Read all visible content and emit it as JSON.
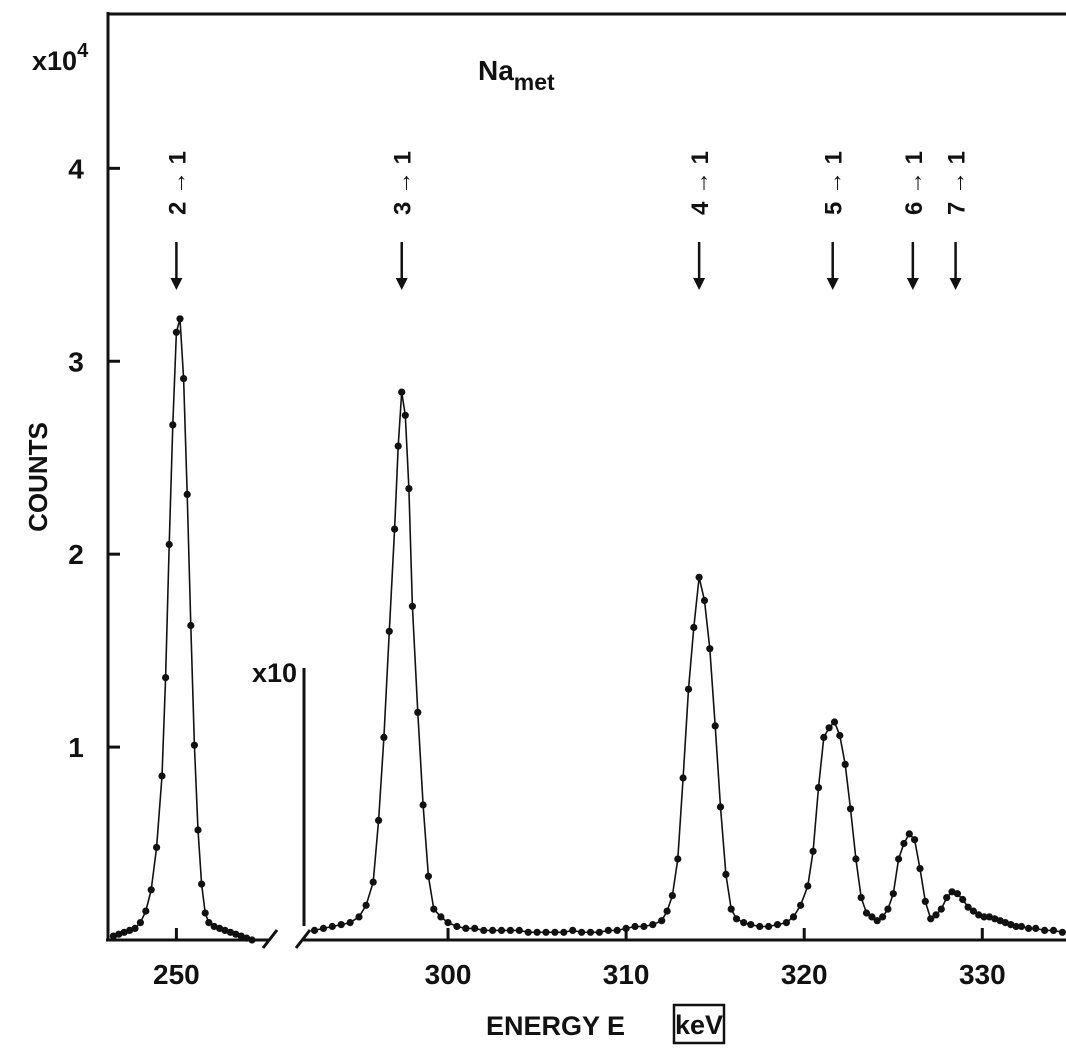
{
  "chart_data": {
    "type": "scatter",
    "title": "Na",
    "title_subscript": "met",
    "xlabel": "ENERGY  E",
    "xunit": "keV",
    "ylabel": "COUNTS",
    "y_multiplier": "x10",
    "y_multiplier_exp": "4",
    "ylim": [
      0,
      4.8
    ],
    "yticks": [
      1,
      2,
      3,
      4
    ],
    "grid": false,
    "legend": "none",
    "break_annotation": "x10",
    "break_note": "data right of the axis break shown magnified x10",
    "segments": [
      {
        "name": "left",
        "xlim": [
          246.2,
          255.2
        ],
        "xticks": [
          250
        ],
        "x": [
          246.5,
          246.8,
          247.1,
          247.4,
          247.7,
          248.0,
          248.3,
          248.6,
          248.9,
          249.2,
          249.4,
          249.6,
          249.8,
          250.0,
          250.2,
          250.4,
          250.6,
          250.8,
          251.0,
          251.2,
          251.4,
          251.6,
          251.8,
          252.1,
          252.4,
          252.7,
          253.0,
          253.3,
          253.6,
          253.9,
          254.2
        ],
        "values": [
          0.02,
          0.03,
          0.04,
          0.05,
          0.06,
          0.09,
          0.15,
          0.26,
          0.48,
          0.85,
          1.36,
          2.05,
          2.67,
          3.15,
          3.22,
          2.91,
          2.31,
          1.63,
          1.01,
          0.57,
          0.29,
          0.14,
          0.09,
          0.07,
          0.06,
          0.05,
          0.04,
          0.03,
          0.02,
          0.01,
          0.0
        ]
      },
      {
        "name": "right",
        "xlim": [
          291.8,
          334.7
        ],
        "xticks": [
          300,
          310,
          320,
          330
        ],
        "x": [
          292.5,
          293.0,
          293.5,
          294.0,
          294.5,
          295.0,
          295.4,
          295.8,
          296.1,
          296.4,
          296.7,
          297.0,
          297.2,
          297.4,
          297.6,
          297.8,
          298.0,
          298.3,
          298.6,
          298.9,
          299.2,
          299.6,
          300.0,
          300.5,
          301.0,
          301.5,
          302.0,
          302.5,
          303.0,
          303.5,
          304.0,
          304.5,
          305.0,
          305.5,
          306.0,
          306.5,
          307.0,
          307.5,
          308.0,
          308.5,
          309.0,
          309.5,
          310.0,
          310.5,
          311.0,
          311.5,
          312.0,
          312.3,
          312.6,
          312.9,
          313.2,
          313.5,
          313.8,
          314.1,
          314.4,
          314.7,
          315.0,
          315.3,
          315.6,
          315.9,
          316.2,
          316.6,
          317.0,
          317.5,
          318.0,
          318.5,
          319.0,
          319.4,
          319.8,
          320.2,
          320.5,
          320.8,
          321.1,
          321.4,
          321.7,
          322.0,
          322.3,
          322.6,
          322.9,
          323.2,
          323.5,
          323.8,
          324.1,
          324.4,
          324.7,
          325.0,
          325.3,
          325.6,
          325.9,
          326.2,
          326.5,
          326.8,
          327.1,
          327.4,
          327.7,
          328.0,
          328.3,
          328.6,
          328.9,
          329.2,
          329.5,
          329.8,
          330.1,
          330.4,
          330.7,
          331.0,
          331.3,
          331.6,
          331.9,
          332.2,
          332.6,
          333.0,
          333.5,
          334.0,
          334.5
        ],
        "values": [
          0.05,
          0.06,
          0.07,
          0.08,
          0.09,
          0.12,
          0.18,
          0.3,
          0.62,
          1.05,
          1.6,
          2.13,
          2.56,
          2.84,
          2.72,
          2.34,
          1.73,
          1.18,
          0.7,
          0.33,
          0.16,
          0.12,
          0.09,
          0.07,
          0.06,
          0.06,
          0.05,
          0.05,
          0.05,
          0.05,
          0.05,
          0.04,
          0.04,
          0.04,
          0.04,
          0.04,
          0.05,
          0.04,
          0.04,
          0.04,
          0.05,
          0.05,
          0.06,
          0.07,
          0.07,
          0.08,
          0.1,
          0.15,
          0.23,
          0.42,
          0.84,
          1.3,
          1.62,
          1.88,
          1.76,
          1.51,
          1.11,
          0.69,
          0.34,
          0.16,
          0.11,
          0.09,
          0.08,
          0.07,
          0.07,
          0.08,
          0.09,
          0.12,
          0.18,
          0.28,
          0.46,
          0.79,
          1.05,
          1.1,
          1.13,
          1.06,
          0.91,
          0.68,
          0.42,
          0.22,
          0.14,
          0.12,
          0.1,
          0.12,
          0.16,
          0.24,
          0.42,
          0.5,
          0.55,
          0.52,
          0.37,
          0.2,
          0.11,
          0.13,
          0.16,
          0.22,
          0.25,
          0.24,
          0.21,
          0.17,
          0.15,
          0.13,
          0.12,
          0.12,
          0.11,
          0.1,
          0.09,
          0.08,
          0.07,
          0.07,
          0.06,
          0.06,
          0.05,
          0.05,
          0.04
        ]
      }
    ],
    "transitions": [
      {
        "label": "2 → 1",
        "x": 250.0,
        "segment": "left"
      },
      {
        "label": "3 → 1",
        "x": 297.4,
        "segment": "right"
      },
      {
        "label": "4 → 1",
        "x": 314.1,
        "segment": "right"
      },
      {
        "label": "5 → 1",
        "x": 321.6,
        "segment": "right"
      },
      {
        "label": "6 → 1",
        "x": 326.1,
        "segment": "right"
      },
      {
        "label": "7 → 1",
        "x": 328.5,
        "segment": "right"
      }
    ]
  }
}
